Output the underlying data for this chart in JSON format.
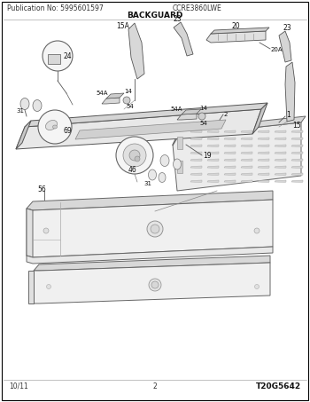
{
  "title": "BACKGUARD",
  "header_left": "Publication No: 5995601597",
  "header_center": "CCRE3860LWE",
  "footer_left": "10/11",
  "footer_center": "2",
  "footer_right": "T20G5642",
  "bg_color": "#ffffff",
  "line_color": "#555555"
}
